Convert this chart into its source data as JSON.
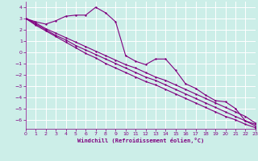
{
  "xlabel": "Windchill (Refroidissement éolien,°C)",
  "bg_color": "#cceee8",
  "grid_color": "#ffffff",
  "line_color": "#800080",
  "xlim": [
    0,
    23
  ],
  "ylim": [
    -6.8,
    4.5
  ],
  "xticks": [
    0,
    1,
    2,
    3,
    4,
    5,
    6,
    7,
    8,
    9,
    10,
    11,
    12,
    13,
    14,
    15,
    16,
    17,
    18,
    19,
    20,
    21,
    22,
    23
  ],
  "yticks": [
    -6,
    -5,
    -4,
    -3,
    -2,
    -1,
    0,
    1,
    2,
    3,
    4
  ],
  "line1_x": [
    0,
    1,
    2,
    3,
    4,
    5,
    6,
    7,
    8,
    9,
    10,
    11,
    12,
    13,
    14,
    15,
    16,
    17,
    18,
    19,
    20,
    21,
    22,
    23
  ],
  "line1_y": [
    3.0,
    2.7,
    2.5,
    2.8,
    3.2,
    3.3,
    3.3,
    4.0,
    3.5,
    2.7,
    -0.3,
    -0.8,
    -1.1,
    -0.6,
    -0.6,
    -1.6,
    -2.8,
    -3.2,
    -3.8,
    -4.3,
    -4.4,
    -5.0,
    -6.1,
    -6.4
  ],
  "line2_x": [
    0,
    1,
    2,
    3,
    4,
    5,
    6,
    7,
    8,
    9,
    10,
    11,
    12,
    13,
    14,
    15,
    16,
    17,
    18,
    19,
    20,
    21,
    22,
    23
  ],
  "line2_y": [
    3.0,
    2.6,
    2.1,
    1.7,
    1.3,
    0.9,
    0.5,
    0.1,
    -0.3,
    -0.7,
    -1.1,
    -1.4,
    -1.8,
    -2.2,
    -2.5,
    -2.9,
    -3.3,
    -3.7,
    -4.1,
    -4.5,
    -4.9,
    -5.3,
    -5.7,
    -6.3
  ],
  "line3_x": [
    0,
    1,
    2,
    3,
    4,
    5,
    6,
    7,
    8,
    9,
    10,
    11,
    12,
    13,
    14,
    15,
    16,
    17,
    18,
    19,
    20,
    21,
    22,
    23
  ],
  "line3_y": [
    3.0,
    2.5,
    2.0,
    1.5,
    1.1,
    0.6,
    0.2,
    -0.2,
    -0.6,
    -1.0,
    -1.4,
    -1.8,
    -2.2,
    -2.5,
    -2.9,
    -3.3,
    -3.7,
    -4.1,
    -4.5,
    -4.9,
    -5.3,
    -5.7,
    -6.1,
    -6.55
  ],
  "line4_x": [
    0,
    1,
    2,
    3,
    4,
    5,
    6,
    7,
    8,
    9,
    10,
    11,
    12,
    13,
    14,
    15,
    16,
    17,
    18,
    19,
    20,
    21,
    22,
    23
  ],
  "line4_y": [
    3.0,
    2.4,
    1.9,
    1.4,
    0.9,
    0.4,
    -0.1,
    -0.5,
    -1.0,
    -1.4,
    -1.8,
    -2.2,
    -2.6,
    -2.9,
    -3.3,
    -3.7,
    -4.1,
    -4.5,
    -4.9,
    -5.3,
    -5.7,
    -6.0,
    -6.4,
    -6.7
  ]
}
